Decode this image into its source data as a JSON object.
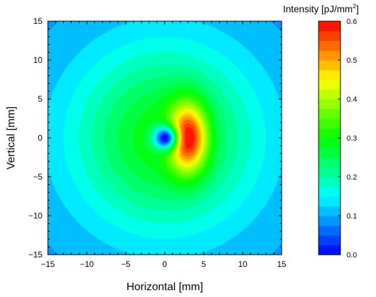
{
  "chart_data": {
    "type": "heatmap",
    "title": "",
    "xlabel": "Horizontal [mm]",
    "ylabel": "Vertical [mm]",
    "xlim": [
      -15,
      15
    ],
    "ylim": [
      -15,
      15
    ],
    "xticks": [
      "−15",
      "−10",
      "−5",
      "0",
      "5",
      "10",
      "15"
    ],
    "yticks": [
      "15",
      "10",
      "5",
      "0",
      "−5",
      "−10",
      "−15"
    ],
    "colorbar": {
      "label": "Intensity [pJ/mm",
      "label_superscript": "2",
      "label_suffix": "]",
      "range": [
        0.0,
        0.6
      ],
      "ticks": [
        "0.6",
        "0.5",
        "0.4",
        "0.3",
        "0.2",
        "0.1",
        "0.0"
      ],
      "levels": 24,
      "colormap": [
        "#0000ff",
        "#00ffff",
        "#00ff00",
        "#ffff00",
        "#ff0000"
      ]
    },
    "field": {
      "description_values": {
        "peak_intensity": 0.6,
        "peak_position_mm": [
          3,
          0
        ],
        "hole_center_mm": [
          0,
          0
        ],
        "hole_min_intensity": 0.0,
        "edge_intensity": 0.09
      }
    }
  }
}
